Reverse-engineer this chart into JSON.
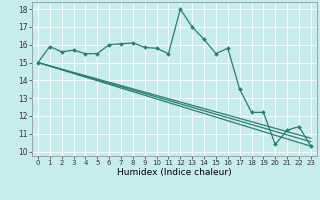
{
  "xlabel": "Humidex (Indice chaleur)",
  "bg_color": "#c8ece9",
  "grid_color": "#ffffff",
  "line_color": "#2d7d6e",
  "xlim": [
    -0.5,
    23.5
  ],
  "ylim": [
    9.75,
    18.4
  ],
  "xticks": [
    0,
    1,
    2,
    3,
    4,
    5,
    6,
    7,
    8,
    9,
    10,
    11,
    12,
    13,
    14,
    15,
    16,
    17,
    18,
    19,
    20,
    21,
    22,
    23
  ],
  "yticks": [
    10,
    11,
    12,
    13,
    14,
    15,
    16,
    17,
    18
  ],
  "line1_y": [
    15.0,
    15.9,
    15.6,
    15.7,
    15.5,
    15.5,
    16.0,
    16.05,
    16.1,
    15.85,
    15.8,
    15.5,
    18.0,
    17.0,
    16.3,
    15.5,
    15.8,
    13.5,
    12.2,
    12.2,
    10.4,
    11.2,
    11.4,
    10.3
  ],
  "line2_end": 10.3,
  "line3_end": 10.55,
  "line4_end": 10.75
}
